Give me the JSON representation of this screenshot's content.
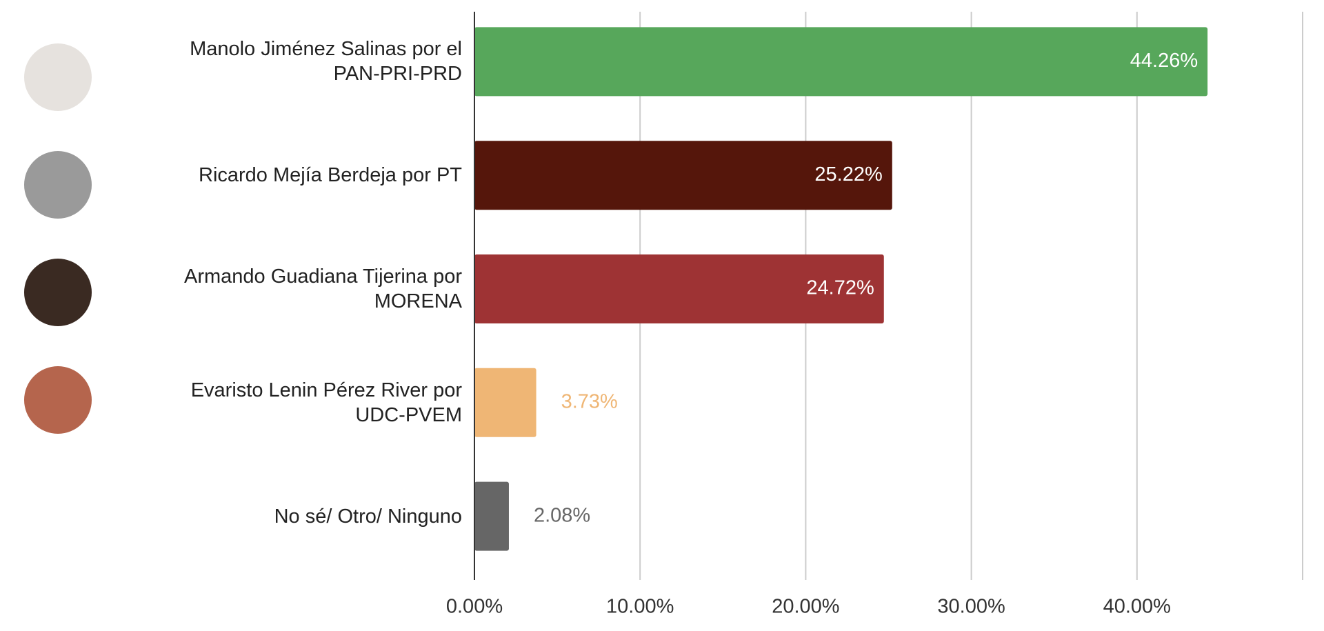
{
  "chart_data": {
    "type": "bar",
    "orientation": "horizontal",
    "categories": [
      "Manolo Jiménez Salinas por el PAN-PRI-PRD",
      "Ricardo Mejía Berdeja por PT",
      "Armando Guadiana Tijerina por MORENA",
      "Evaristo Lenin Pérez River por UDC-PVEM",
      "No sé/ Otro/ Ninguno"
    ],
    "values": [
      44.26,
      25.22,
      24.72,
      3.73,
      2.08
    ],
    "value_labels": [
      "44.26%",
      "25.22%",
      "24.72%",
      "3.73%",
      "2.08%"
    ],
    "colors": [
      "#57a75b",
      "#55160b",
      "#9e3334",
      "#efb675",
      "#666666"
    ],
    "xlim": [
      0,
      50
    ],
    "xticks": [
      {
        "value": 0,
        "label": "0.00%"
      },
      {
        "value": 10,
        "label": "10.00%"
      },
      {
        "value": 20,
        "label": "20.00%"
      },
      {
        "value": 30,
        "label": "30.00%"
      },
      {
        "value": 40,
        "label": "40.00%"
      }
    ],
    "grid": true
  }
}
